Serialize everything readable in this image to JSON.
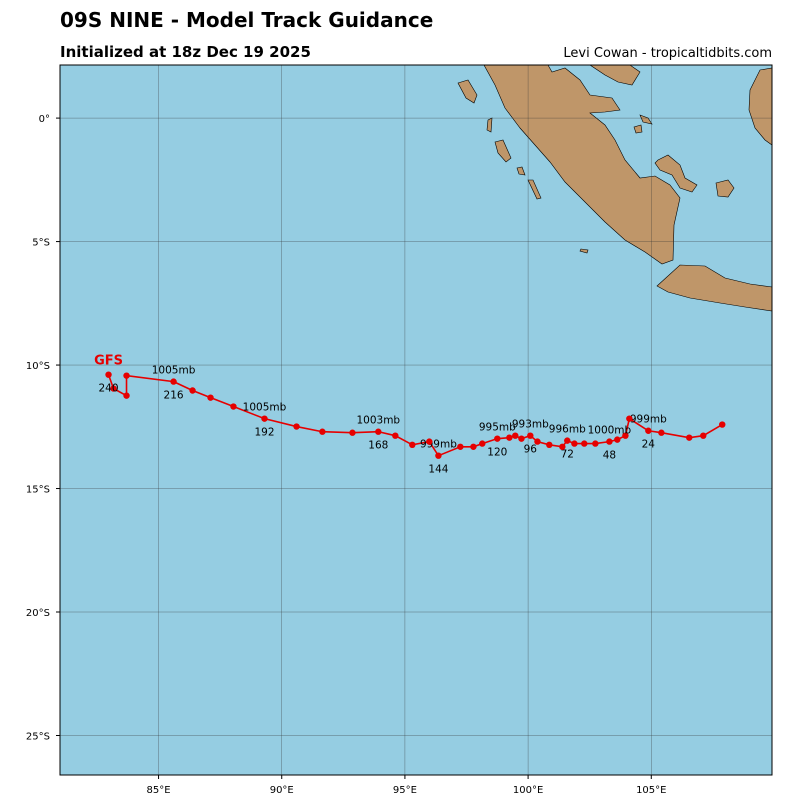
{
  "chart_data": {
    "type": "track",
    "title": "09S NINE - Model Track Guidance",
    "subtitle": "Initialized at 18z Dec 19 2025",
    "credit": "Levi Cowan - tropicaltidbits.com",
    "xlim": [
      81.0,
      109.9
    ],
    "ylim": [
      -26.6,
      2.15
    ],
    "xticks": [
      {
        "value": 85,
        "label": "85°E"
      },
      {
        "value": 90,
        "label": "90°E"
      },
      {
        "value": 95,
        "label": "95°E"
      },
      {
        "value": 100,
        "label": "100°E"
      },
      {
        "value": 105,
        "label": "105°E"
      }
    ],
    "yticks": [
      {
        "value": 0,
        "label": "0°"
      },
      {
        "value": -5,
        "label": "5°S"
      },
      {
        "value": -10,
        "label": "10°S"
      },
      {
        "value": -15,
        "label": "15°S"
      },
      {
        "value": -20,
        "label": "20°S"
      },
      {
        "value": -25,
        "label": "25°S"
      }
    ],
    "grid": true,
    "series": [
      {
        "name": "GFS",
        "color": "#e60000",
        "x": [
          107.88,
          107.11,
          106.54,
          105.41,
          104.88,
          104.11,
          103.95,
          103.62,
          103.3,
          102.73,
          102.28,
          101.88,
          101.59,
          101.39,
          100.86,
          100.38,
          100.09,
          99.73,
          99.48,
          99.24,
          98.75,
          98.14,
          97.78,
          97.25,
          96.36,
          95.99,
          95.3,
          94.61,
          93.92,
          92.87,
          91.65,
          90.6,
          89.3,
          88.04,
          87.11,
          86.38,
          85.61,
          83.7,
          83.7,
          83.17,
          82.97
        ],
        "values": [
          -12.41,
          -12.86,
          -12.94,
          -12.74,
          -12.66,
          -12.17,
          -12.86,
          -13.02,
          -13.1,
          -13.18,
          -13.18,
          -13.18,
          -13.06,
          -13.31,
          -13.23,
          -13.1,
          -12.86,
          -12.98,
          -12.86,
          -12.94,
          -12.98,
          -13.18,
          -13.31,
          -13.31,
          -13.67,
          -13.1,
          -13.23,
          -12.86,
          -12.7,
          -12.74,
          -12.7,
          -12.49,
          -12.17,
          -11.68,
          -11.32,
          -11.03,
          -10.67,
          -10.43,
          -11.24,
          -10.95,
          -10.39
        ],
        "pressure_labels": [
          null,
          null,
          null,
          null,
          "999mb",
          null,
          null,
          null,
          "1000mb",
          null,
          null,
          null,
          "996mb",
          null,
          null,
          null,
          "993mb",
          null,
          null,
          null,
          "995mb",
          null,
          null,
          null,
          "999mb",
          null,
          null,
          null,
          "1003mb",
          null,
          null,
          null,
          "1005mb",
          null,
          null,
          null,
          "1005mb",
          null,
          null,
          null,
          null
        ],
        "hour_labels": [
          null,
          null,
          null,
          null,
          "24",
          null,
          null,
          null,
          "48",
          null,
          null,
          null,
          "72",
          null,
          null,
          null,
          "96",
          null,
          null,
          null,
          "120",
          null,
          null,
          null,
          "144",
          null,
          null,
          null,
          "168",
          null,
          null,
          null,
          "192",
          null,
          null,
          null,
          "216",
          null,
          null,
          null,
          "240"
        ]
      }
    ]
  }
}
